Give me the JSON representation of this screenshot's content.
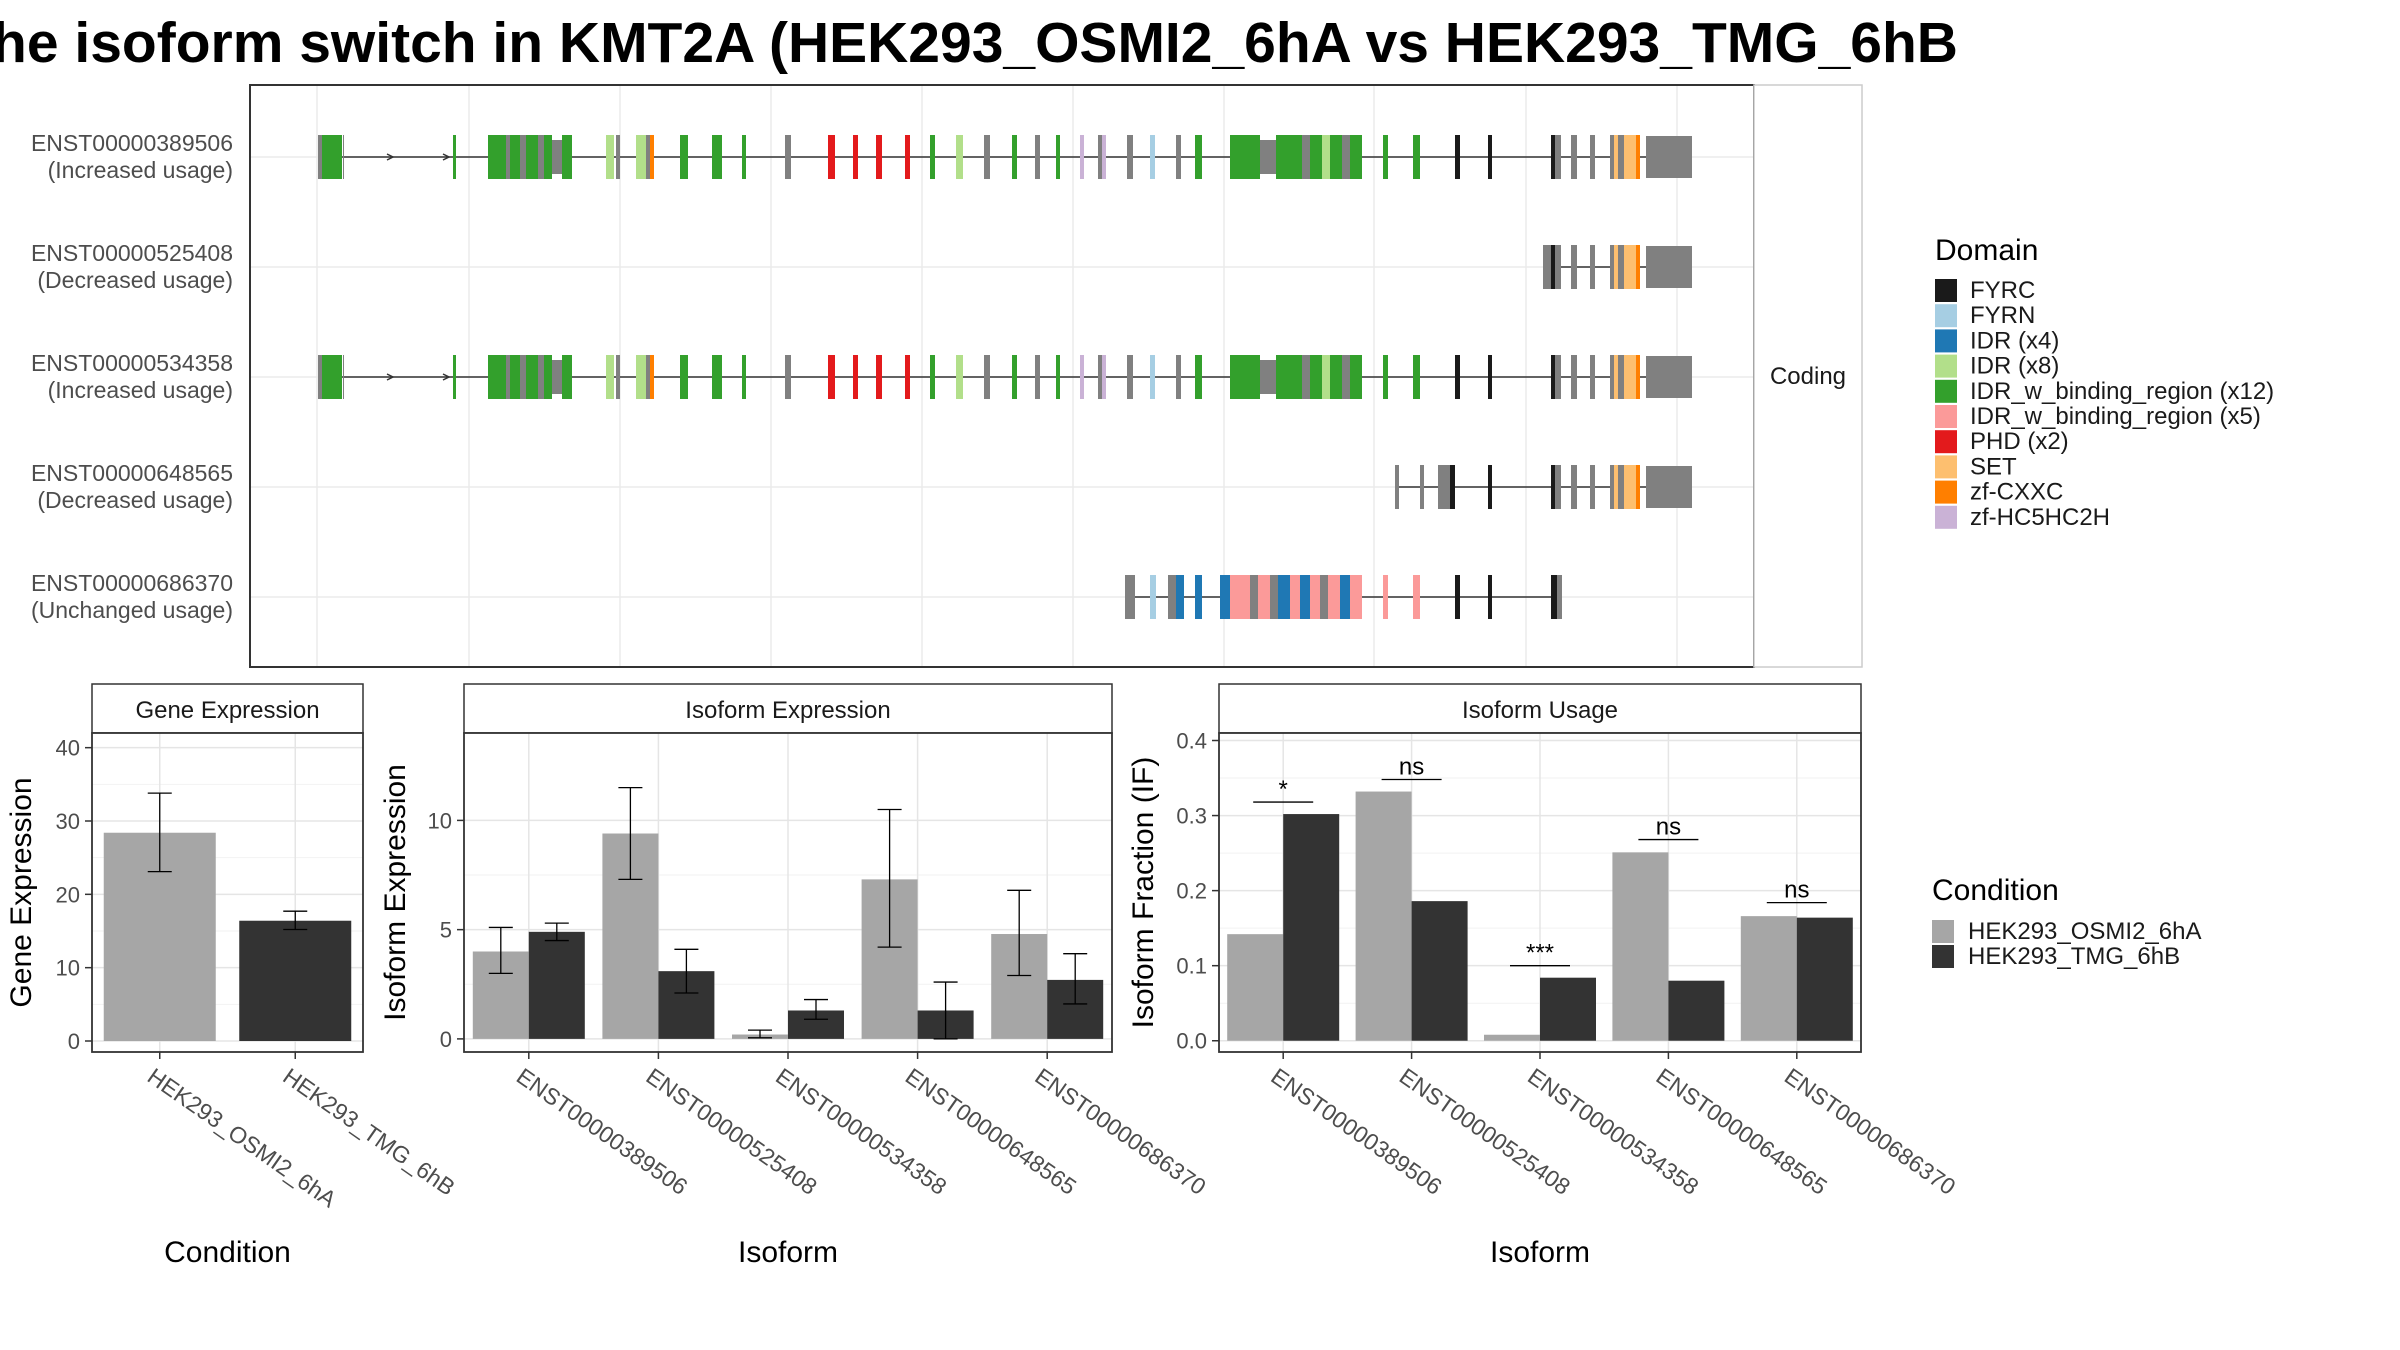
{
  "title": "he isoform switch in KMT2A (HEK293_OSMI2_6hA vs HEK293_TMG_6hB",
  "colors": {
    "cond_a": "#a6a6a6",
    "cond_b": "#333333",
    "backbone": "#808080",
    "domains": {
      "FYRC": "#1a1a1a",
      "FYRN": "#a6cee3",
      "IDR (x4)": "#1f78b4",
      "IDR (x8)": "#b2df8a",
      "IDR_w_binding_region (x12)": "#33a02c",
      "IDR_w_binding_region (x5)": "#fb9a99",
      "PHD (x2)": "#e31a1c",
      "SET": "#fdbf6f",
      "zf-CXXC": "#ff7f00",
      "zf-HC5HC2H": "#cab2d6"
    }
  },
  "transcript_panel": {
    "strip_label": "Coding",
    "rows": [
      {
        "id": "ENST00000389506",
        "status": "(Increased usage)"
      },
      {
        "id": "ENST00000525408",
        "status": "(Decreased usage)"
      },
      {
        "id": "ENST00000534358",
        "status": "(Increased usage)"
      },
      {
        "id": "ENST00000648565",
        "status": "(Decreased usage)"
      },
      {
        "id": "ENST00000686370",
        "status": "(Unchanged usage)"
      }
    ]
  },
  "domain_legend": {
    "title": "Domain",
    "entries": [
      "FYRC",
      "FYRN",
      "IDR (x4)",
      "IDR (x8)",
      "IDR_w_binding_region (x12)",
      "IDR_w_binding_region (x5)",
      "PHD (x2)",
      "SET",
      "zf-CXXC",
      "zf-HC5HC2H"
    ]
  },
  "condition_legend": {
    "title": "Condition",
    "entries": [
      "HEK293_OSMI2_6hA",
      "HEK293_TMG_6hB"
    ]
  },
  "chart_data": [
    {
      "type": "bar",
      "title": "Gene Expression",
      "xlabel": "Condition",
      "ylabel": "Gene Expression",
      "ylim": [
        -1.5,
        42
      ],
      "yticks": [
        0,
        10,
        20,
        30,
        40
      ],
      "categories": [
        "HEK293_OSMI2_6hA",
        "HEK293_TMG_6hB"
      ],
      "values": [
        28.4,
        16.4
      ],
      "err_low": [
        23.1,
        15.2
      ],
      "err_high": [
        33.8,
        17.7
      ]
    },
    {
      "type": "bar",
      "title": "Isoform Expression",
      "xlabel": "Isoform",
      "ylabel": "Isoform Expression",
      "ylim": [
        -0.6,
        14
      ],
      "yticks": [
        0,
        5,
        10
      ],
      "categories": [
        "ENST00000389506",
        "ENST00000525408",
        "ENST00000534358",
        "ENST00000648565",
        "ENST00000686370"
      ],
      "series": [
        {
          "name": "HEK293_OSMI2_6hA",
          "values": [
            4.0,
            9.4,
            0.2,
            7.3,
            4.8
          ],
          "err_low": [
            3.0,
            7.3,
            0.05,
            4.2,
            2.9
          ],
          "err_high": [
            5.1,
            11.5,
            0.4,
            10.5,
            6.8
          ]
        },
        {
          "name": "HEK293_TMG_6hB",
          "values": [
            4.9,
            3.1,
            1.3,
            1.3,
            2.7
          ],
          "err_low": [
            4.5,
            2.1,
            0.9,
            0.0,
            1.6
          ],
          "err_high": [
            5.3,
            4.1,
            1.8,
            2.6,
            3.9
          ]
        }
      ]
    },
    {
      "type": "bar",
      "title": "Isoform Usage",
      "xlabel": "Isoform",
      "ylabel": "Isoform Fraction (IF)",
      "ylim": [
        -0.015,
        0.41
      ],
      "yticks": [
        0.0,
        0.1,
        0.2,
        0.3,
        0.4
      ],
      "ytick_labels": [
        "0.0",
        "0.1",
        "0.2",
        "0.3",
        "0.4"
      ],
      "categories": [
        "ENST00000389506",
        "ENST00000525408",
        "ENST00000534358",
        "ENST00000648565",
        "ENST00000686370"
      ],
      "series": [
        {
          "name": "HEK293_OSMI2_6hA",
          "values": [
            0.142,
            0.332,
            0.008,
            0.251,
            0.166
          ]
        },
        {
          "name": "HEK293_TMG_6hB",
          "values": [
            0.302,
            0.186,
            0.084,
            0.08,
            0.164
          ]
        }
      ],
      "significance": [
        "*",
        "ns",
        "***",
        "ns",
        "ns"
      ],
      "significance_y": [
        0.318,
        0.348,
        0.1,
        0.268,
        0.184
      ]
    }
  ]
}
